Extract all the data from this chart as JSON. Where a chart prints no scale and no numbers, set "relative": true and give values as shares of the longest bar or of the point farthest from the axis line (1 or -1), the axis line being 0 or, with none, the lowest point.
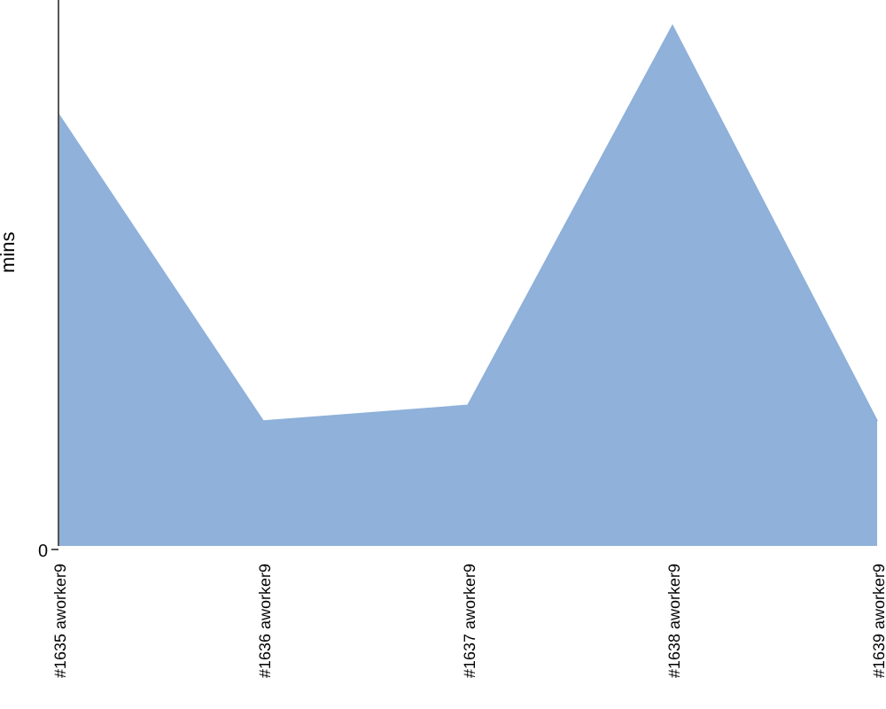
{
  "chart_data": {
    "type": "area",
    "ylabel": "mins",
    "relative": true,
    "annotations": [
      "0"
    ],
    "categories": [
      "#1635 aworker9",
      "#1636 aworker9",
      "#1637 aworker9",
      "#1638 aworker9",
      "#1639 aworker9"
    ],
    "values": [
      0.83,
      0.24,
      0.27,
      1,
      0.24
    ],
    "color": "#8fb1da"
  }
}
